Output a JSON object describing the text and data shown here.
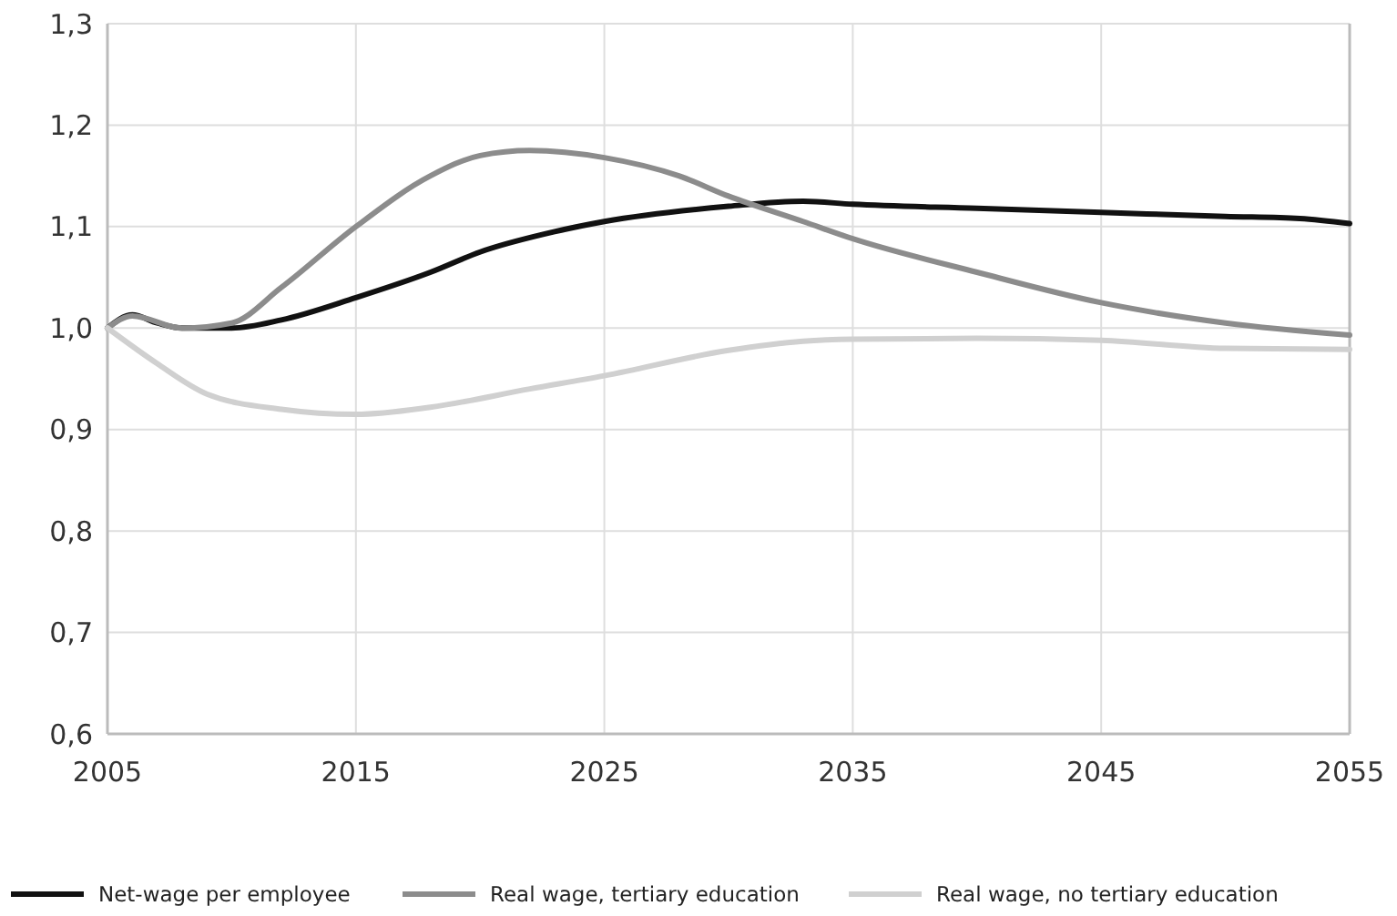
{
  "chart_data": {
    "type": "line",
    "xlim": [
      2005,
      2055
    ],
    "xticks": [
      2005,
      2015,
      2025,
      2035,
      2045,
      2055
    ],
    "ylim": [
      0.6,
      1.3
    ],
    "yticks": [
      {
        "value": 0.6,
        "label": "0,6"
      },
      {
        "value": 0.7,
        "label": "0,7"
      },
      {
        "value": 0.8,
        "label": "0,8"
      },
      {
        "value": 0.9,
        "label": "0,9"
      },
      {
        "value": 1.0,
        "label": "1,0"
      },
      {
        "value": 1.1,
        "label": "1,1"
      },
      {
        "value": 1.2,
        "label": "1,2"
      },
      {
        "value": 1.3,
        "label": "1,3"
      }
    ],
    "grid": true,
    "legend": "bottom",
    "marker": "none",
    "line_style": "solid",
    "series": [
      {
        "name": "Net-wage per employee",
        "color": "#111111",
        "x": [
          2005,
          2006,
          2007,
          2008,
          2010,
          2012,
          2015,
          2018,
          2020,
          2023,
          2025,
          2030,
          2033,
          2035,
          2040,
          2045,
          2050,
          2053,
          2055
        ],
        "values": [
          1.0,
          1.013,
          1.005,
          1.0,
          1.0,
          1.008,
          1.03,
          1.055,
          1.075,
          1.095,
          1.105,
          1.12,
          1.125,
          1.122,
          1.118,
          1.114,
          1.11,
          1.108,
          1.103
        ]
      },
      {
        "name": "Real wage, tertiary education",
        "color": "#8c8c8c",
        "x": [
          2005,
          2006,
          2008,
          2010,
          2012,
          2015,
          2018,
          2020,
          2022,
          2025,
          2028,
          2030,
          2033,
          2035,
          2040,
          2045,
          2050,
          2055
        ],
        "values": [
          1.0,
          1.012,
          1.0,
          1.005,
          1.04,
          1.1,
          1.15,
          1.17,
          1.175,
          1.168,
          1.15,
          1.13,
          1.105,
          1.088,
          1.055,
          1.025,
          1.005,
          0.993
        ]
      },
      {
        "name": "Real wage, no tertiary education",
        "color": "#d0d0d0",
        "x": [
          2005,
          2007,
          2009,
          2012,
          2015,
          2018,
          2022,
          2025,
          2030,
          2033,
          2035,
          2040,
          2045,
          2050,
          2055
        ],
        "values": [
          1.0,
          0.965,
          0.935,
          0.92,
          0.915,
          0.922,
          0.94,
          0.953,
          0.978,
          0.987,
          0.989,
          0.99,
          0.988,
          0.98,
          0.979
        ]
      }
    ]
  }
}
